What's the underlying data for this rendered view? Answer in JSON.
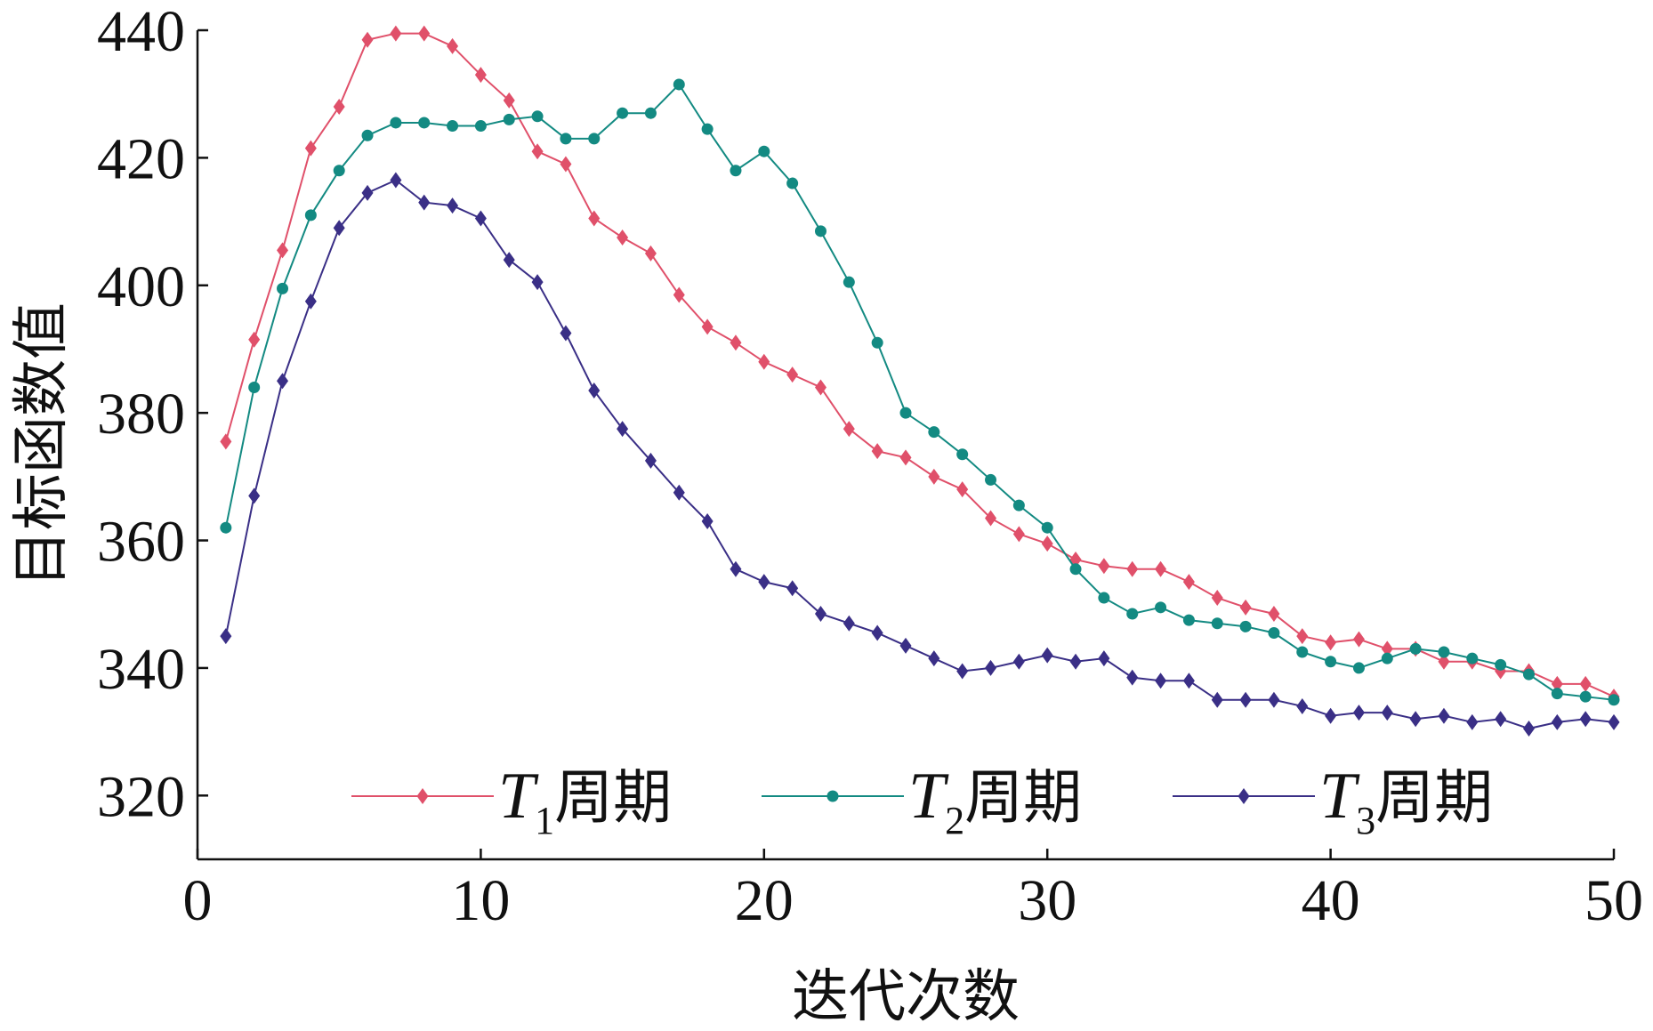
{
  "chart_data": {
    "type": "line",
    "xlabel": "迭代次数",
    "ylabel": "目标函数值",
    "xlim": [
      0,
      50
    ],
    "ylim": [
      310,
      440
    ],
    "xticks": [
      "0",
      "10",
      "20",
      "30",
      "40",
      "50"
    ],
    "yticks": [
      "320",
      "340",
      "360",
      "380",
      "400",
      "420",
      "440"
    ],
    "grid": false,
    "legend_position": "bottom-center",
    "x": [
      1,
      2,
      3,
      4,
      5,
      6,
      7,
      8,
      9,
      10,
      11,
      12,
      13,
      14,
      15,
      16,
      17,
      18,
      19,
      20,
      21,
      22,
      23,
      24,
      25,
      26,
      27,
      28,
      29,
      30,
      31,
      32,
      33,
      34,
      35,
      36,
      37,
      38,
      39,
      40,
      41,
      42,
      43,
      44,
      45,
      46,
      47,
      48,
      49,
      50
    ],
    "series": [
      {
        "name": "T1周期",
        "name_main": "T",
        "name_sub": "1",
        "name_suffix": "周期",
        "color": "#e0506a",
        "marker": "diamond",
        "values": [
          375.5,
          391.5,
          405.5,
          421.5,
          428,
          438.5,
          439.5,
          439.5,
          437.5,
          433,
          429,
          421,
          419,
          410.5,
          407.5,
          405,
          398.5,
          393.5,
          391,
          388,
          386,
          384,
          377.5,
          374,
          373,
          370,
          368,
          363.5,
          361,
          359.5,
          357,
          356,
          355.5,
          355.5,
          353.5,
          351,
          349.5,
          348.5,
          345,
          344,
          344.5,
          343,
          343,
          341,
          341,
          339.5,
          339.5,
          337.5,
          337.5,
          335.5
        ]
      },
      {
        "name": "T2周期",
        "name_main": "T",
        "name_sub": "2",
        "name_suffix": "周期",
        "color": "#138a82",
        "marker": "circle",
        "values": [
          362,
          384,
          399.5,
          411,
          418,
          423.5,
          425.5,
          425.5,
          425,
          425,
          426,
          426.5,
          423,
          423,
          427,
          427,
          431.5,
          424.5,
          418,
          421,
          416,
          408.5,
          400.5,
          391,
          380,
          377,
          373.5,
          369.5,
          365.5,
          362,
          355.5,
          351,
          348.5,
          349.5,
          347.5,
          347,
          346.5,
          345.5,
          342.5,
          341,
          340,
          341.5,
          343,
          342.5,
          341.5,
          340.5,
          339,
          336,
          335.5,
          335
        ]
      },
      {
        "name": "T3周期",
        "name_main": "T",
        "name_sub": "3",
        "name_suffix": "周期",
        "color": "#3a2f86",
        "marker": "diamond",
        "values": [
          345,
          367,
          385,
          397.5,
          409,
          414.5,
          416.5,
          413,
          412.5,
          410.5,
          404,
          400.5,
          392.5,
          383.5,
          377.5,
          372.5,
          367.5,
          363,
          355.5,
          353.5,
          352.5,
          348.5,
          347,
          345.5,
          343.5,
          341.5,
          339.5,
          340,
          341,
          342,
          341,
          341.5,
          338.5,
          338,
          338,
          335,
          335,
          335,
          334,
          332.5,
          333,
          333,
          332,
          332.5,
          331.5,
          332,
          330.5,
          331.5,
          332,
          331.5
        ]
      }
    ]
  }
}
